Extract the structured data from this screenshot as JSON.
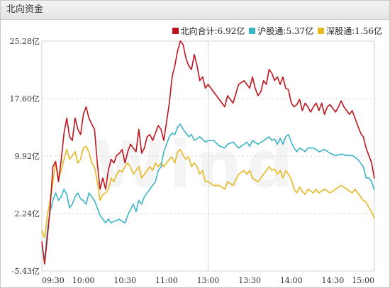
{
  "panel": {
    "title": "北向资金"
  },
  "legend": [
    {
      "name": "北向合计",
      "value": "6.92亿",
      "color": "#c0141c"
    },
    {
      "name": "沪股通",
      "value": "5.37亿",
      "color": "#3ab4c8"
    },
    {
      "name": "深股通",
      "value": "1.56亿",
      "color": "#e8b821"
    }
  ],
  "chart_data": {
    "type": "line",
    "y_ticks": [
      "25.28亿",
      "17.60亿",
      "9.92亿",
      "2.24亿",
      "-5.43亿"
    ],
    "y_tick_values": [
      25.28,
      17.6,
      9.92,
      2.24,
      -5.43
    ],
    "ylim": [
      -5.43,
      25.28
    ],
    "x_ticks": [
      "09:30",
      "10:00",
      "10:30",
      "11:00",
      "13:00",
      "13:30",
      "14:00",
      "14:30",
      "15:00"
    ],
    "x_tick_minutes": [
      0,
      30,
      60,
      90,
      120,
      150,
      180,
      210,
      240
    ],
    "grid": true,
    "series": [
      {
        "name": "北向合计",
        "color": "#c0141c",
        "points": [
          [
            0,
            -1.5
          ],
          [
            2,
            -4.5
          ],
          [
            4,
            -1.0
          ],
          [
            6,
            3.0
          ],
          [
            8,
            8.5
          ],
          [
            10,
            9.2
          ],
          [
            12,
            6.5
          ],
          [
            14,
            9.5
          ],
          [
            16,
            13.0
          ],
          [
            18,
            15.0
          ],
          [
            20,
            12.5
          ],
          [
            22,
            12.0
          ],
          [
            24,
            15.0
          ],
          [
            26,
            13.5
          ],
          [
            28,
            12.8
          ],
          [
            30,
            15.5
          ],
          [
            32,
            16.5
          ],
          [
            34,
            15.0
          ],
          [
            36,
            14.2
          ],
          [
            38,
            13.5
          ],
          [
            40,
            9.0
          ],
          [
            42,
            5.5
          ],
          [
            44,
            7.0
          ],
          [
            46,
            5.5
          ],
          [
            48,
            8.0
          ],
          [
            50,
            9.5
          ],
          [
            52,
            9.0
          ],
          [
            54,
            10.0
          ],
          [
            56,
            10.3
          ],
          [
            58,
            10.8
          ],
          [
            60,
            9.0
          ],
          [
            62,
            10.5
          ],
          [
            64,
            11.5
          ],
          [
            66,
            11.0
          ],
          [
            68,
            10.5
          ],
          [
            70,
            13.5
          ],
          [
            72,
            10.3
          ],
          [
            74,
            11.0
          ],
          [
            76,
            12.5
          ],
          [
            78,
            12.8
          ],
          [
            80,
            12.0
          ],
          [
            82,
            13.0
          ],
          [
            84,
            14.0
          ],
          [
            86,
            13.5
          ],
          [
            88,
            12.0
          ],
          [
            90,
            14.5
          ],
          [
            92,
            17.0
          ],
          [
            94,
            20.5
          ],
          [
            96,
            22.0
          ],
          [
            98,
            24.0
          ],
          [
            100,
            25.3
          ],
          [
            102,
            24.8
          ],
          [
            104,
            23.0
          ],
          [
            106,
            22.0
          ],
          [
            108,
            21.5
          ],
          [
            110,
            23.5
          ],
          [
            112,
            22.0
          ],
          [
            114,
            20.0
          ],
          [
            116,
            20.5
          ],
          [
            118,
            19.0
          ],
          [
            120,
            19.5
          ],
          [
            124,
            18.5
          ],
          [
            128,
            17.5
          ],
          [
            132,
            16.5
          ],
          [
            134,
            18.0
          ],
          [
            138,
            17.0
          ],
          [
            142,
            19.5
          ],
          [
            146,
            20.0
          ],
          [
            148,
            19.5
          ],
          [
            150,
            19.0
          ],
          [
            152,
            20.5
          ],
          [
            154,
            19.0
          ],
          [
            156,
            18.0
          ],
          [
            158,
            18.5
          ],
          [
            160,
            20.0
          ],
          [
            162,
            19.5
          ],
          [
            164,
            21.5
          ],
          [
            166,
            21.0
          ],
          [
            168,
            20.0
          ],
          [
            170,
            20.5
          ],
          [
            172,
            19.5
          ],
          [
            174,
            20.5
          ],
          [
            176,
            19.0
          ],
          [
            178,
            18.8
          ],
          [
            180,
            17.0
          ],
          [
            182,
            16.5
          ],
          [
            184,
            16.8
          ],
          [
            186,
            17.5
          ],
          [
            188,
            16.0
          ],
          [
            190,
            17.0
          ],
          [
            192,
            16.5
          ],
          [
            194,
            15.8
          ],
          [
            196,
            16.5
          ],
          [
            198,
            17.0
          ],
          [
            200,
            16.0
          ],
          [
            202,
            17.0
          ],
          [
            204,
            15.5
          ],
          [
            206,
            16.5
          ],
          [
            208,
            16.8
          ],
          [
            210,
            16.3
          ],
          [
            212,
            15.8
          ],
          [
            214,
            16.5
          ],
          [
            216,
            17.3
          ],
          [
            218,
            16.5
          ],
          [
            220,
            16.0
          ],
          [
            222,
            15.5
          ],
          [
            224,
            16.0
          ],
          [
            226,
            15.0
          ],
          [
            228,
            14.0
          ],
          [
            230,
            13.0
          ],
          [
            232,
            12.5
          ],
          [
            234,
            11.0
          ],
          [
            236,
            10.0
          ],
          [
            238,
            9.0
          ],
          [
            240,
            6.92
          ]
        ]
      },
      {
        "name": "沪股通",
        "color": "#3ab4c8",
        "points": [
          [
            0,
            -2.0
          ],
          [
            2,
            -4.0
          ],
          [
            4,
            0.0
          ],
          [
            6,
            2.5
          ],
          [
            8,
            4.0
          ],
          [
            10,
            5.0
          ],
          [
            12,
            4.0
          ],
          [
            14,
            4.5
          ],
          [
            16,
            5.5
          ],
          [
            18,
            4.8
          ],
          [
            20,
            3.0
          ],
          [
            22,
            3.5
          ],
          [
            24,
            4.5
          ],
          [
            26,
            5.0
          ],
          [
            28,
            4.2
          ],
          [
            30,
            4.0
          ],
          [
            32,
            3.5
          ],
          [
            34,
            5.0
          ],
          [
            36,
            4.5
          ],
          [
            38,
            4.0
          ],
          [
            40,
            3.0
          ],
          [
            42,
            2.0
          ],
          [
            44,
            1.5
          ],
          [
            46,
            1.0
          ],
          [
            48,
            1.5
          ],
          [
            50,
            1.0
          ],
          [
            52,
            1.2
          ],
          [
            54,
            1.3
          ],
          [
            56,
            1.5
          ],
          [
            58,
            1.2
          ],
          [
            60,
            1.0
          ],
          [
            62,
            2.0
          ],
          [
            64,
            2.8
          ],
          [
            66,
            3.5
          ],
          [
            68,
            2.5
          ],
          [
            70,
            4.0
          ],
          [
            72,
            3.5
          ],
          [
            74,
            4.5
          ],
          [
            76,
            5.0
          ],
          [
            78,
            5.5
          ],
          [
            80,
            6.0
          ],
          [
            82,
            6.5
          ],
          [
            84,
            8.0
          ],
          [
            86,
            8.5
          ],
          [
            88,
            10.5
          ],
          [
            90,
            11.5
          ],
          [
            92,
            12.5
          ],
          [
            94,
            13.0
          ],
          [
            96,
            12.8
          ],
          [
            98,
            13.8
          ],
          [
            100,
            14.2
          ],
          [
            102,
            13.5
          ],
          [
            104,
            13.0
          ],
          [
            106,
            12.5
          ],
          [
            108,
            12.8
          ],
          [
            110,
            12.0
          ],
          [
            114,
            12.5
          ],
          [
            118,
            11.8
          ],
          [
            120,
            12.0
          ],
          [
            124,
            12.0
          ],
          [
            128,
            11.3
          ],
          [
            132,
            11.0
          ],
          [
            134,
            11.5
          ],
          [
            138,
            11.8
          ],
          [
            142,
            11.0
          ],
          [
            146,
            11.5
          ],
          [
            148,
            11.8
          ],
          [
            150,
            11.2
          ],
          [
            152,
            12.0
          ],
          [
            156,
            11.5
          ],
          [
            160,
            12.0
          ],
          [
            164,
            12.5
          ],
          [
            166,
            12.0
          ],
          [
            168,
            12.2
          ],
          [
            170,
            11.5
          ],
          [
            172,
            12.3
          ],
          [
            174,
            11.5
          ],
          [
            176,
            12.5
          ],
          [
            178,
            12.8
          ],
          [
            180,
            11.8
          ],
          [
            182,
            11.0
          ],
          [
            184,
            10.5
          ],
          [
            186,
            11.0
          ],
          [
            188,
            10.8
          ],
          [
            190,
            10.5
          ],
          [
            192,
            11.0
          ],
          [
            196,
            11.0
          ],
          [
            198,
            10.8
          ],
          [
            200,
            10.5
          ],
          [
            204,
            10.8
          ],
          [
            208,
            10.3
          ],
          [
            212,
            10.0
          ],
          [
            216,
            10.2
          ],
          [
            220,
            10.0
          ],
          [
            224,
            10.0
          ],
          [
            228,
            9.5
          ],
          [
            230,
            9.0
          ],
          [
            232,
            8.5
          ],
          [
            234,
            7.0
          ],
          [
            236,
            7.0
          ],
          [
            238,
            6.5
          ],
          [
            240,
            5.37
          ]
        ]
      },
      {
        "name": "深股通",
        "color": "#e8b821",
        "points": [
          [
            0,
            0.0
          ],
          [
            2,
            -1.0
          ],
          [
            4,
            2.0
          ],
          [
            6,
            4.0
          ],
          [
            8,
            6.5
          ],
          [
            10,
            9.0
          ],
          [
            12,
            7.0
          ],
          [
            14,
            8.0
          ],
          [
            16,
            9.5
          ],
          [
            18,
            10.8
          ],
          [
            20,
            9.5
          ],
          [
            22,
            10.0
          ],
          [
            24,
            10.5
          ],
          [
            26,
            9.0
          ],
          [
            28,
            9.5
          ],
          [
            30,
            11.0
          ],
          [
            32,
            11.2
          ],
          [
            34,
            10.5
          ],
          [
            36,
            9.0
          ],
          [
            38,
            8.5
          ],
          [
            40,
            6.5
          ],
          [
            42,
            4.0
          ],
          [
            44,
            4.8
          ],
          [
            46,
            5.0
          ],
          [
            48,
            5.5
          ],
          [
            50,
            7.0
          ],
          [
            52,
            6.5
          ],
          [
            54,
            7.5
          ],
          [
            56,
            8.0
          ],
          [
            58,
            7.8
          ],
          [
            60,
            8.5
          ],
          [
            62,
            9.0
          ],
          [
            64,
            8.5
          ],
          [
            66,
            7.5
          ],
          [
            68,
            8.0
          ],
          [
            70,
            8.5
          ],
          [
            72,
            7.0
          ],
          [
            74,
            7.5
          ],
          [
            76,
            8.0
          ],
          [
            78,
            8.5
          ],
          [
            80,
            8.0
          ],
          [
            82,
            9.0
          ],
          [
            84,
            8.5
          ],
          [
            86,
            9.0
          ],
          [
            88,
            8.5
          ],
          [
            90,
            9.0
          ],
          [
            92,
            9.5
          ],
          [
            94,
            9.8
          ],
          [
            96,
            9.0
          ],
          [
            98,
            10.5
          ],
          [
            100,
            10.8
          ],
          [
            102,
            10.0
          ],
          [
            104,
            9.5
          ],
          [
            106,
            9.8
          ],
          [
            108,
            8.5
          ],
          [
            110,
            9.0
          ],
          [
            112,
            8.5
          ],
          [
            114,
            7.5
          ],
          [
            116,
            8.0
          ],
          [
            118,
            6.5
          ],
          [
            120,
            6.5
          ],
          [
            124,
            6.0
          ],
          [
            128,
            6.0
          ],
          [
            132,
            5.5
          ],
          [
            134,
            6.5
          ],
          [
            138,
            6.0
          ],
          [
            142,
            7.5
          ],
          [
            146,
            8.0
          ],
          [
            148,
            7.5
          ],
          [
            150,
            8.0
          ],
          [
            152,
            7.0
          ],
          [
            156,
            6.5
          ],
          [
            160,
            7.5
          ],
          [
            164,
            8.5
          ],
          [
            166,
            8.0
          ],
          [
            168,
            8.2
          ],
          [
            170,
            7.5
          ],
          [
            172,
            8.0
          ],
          [
            174,
            7.0
          ],
          [
            176,
            8.0
          ],
          [
            178,
            7.5
          ],
          [
            180,
            6.8
          ],
          [
            182,
            5.5
          ],
          [
            184,
            5.0
          ],
          [
            186,
            5.8
          ],
          [
            188,
            5.2
          ],
          [
            190,
            4.8
          ],
          [
            192,
            5.5
          ],
          [
            196,
            5.0
          ],
          [
            198,
            5.5
          ],
          [
            200,
            5.0
          ],
          [
            204,
            5.5
          ],
          [
            208,
            5.0
          ],
          [
            212,
            5.5
          ],
          [
            216,
            6.0
          ],
          [
            220,
            5.5
          ],
          [
            224,
            5.0
          ],
          [
            226,
            5.5
          ],
          [
            228,
            5.0
          ],
          [
            230,
            4.5
          ],
          [
            232,
            4.0
          ],
          [
            234,
            3.8
          ],
          [
            236,
            3.0
          ],
          [
            238,
            2.5
          ],
          [
            240,
            1.56
          ]
        ]
      }
    ]
  }
}
